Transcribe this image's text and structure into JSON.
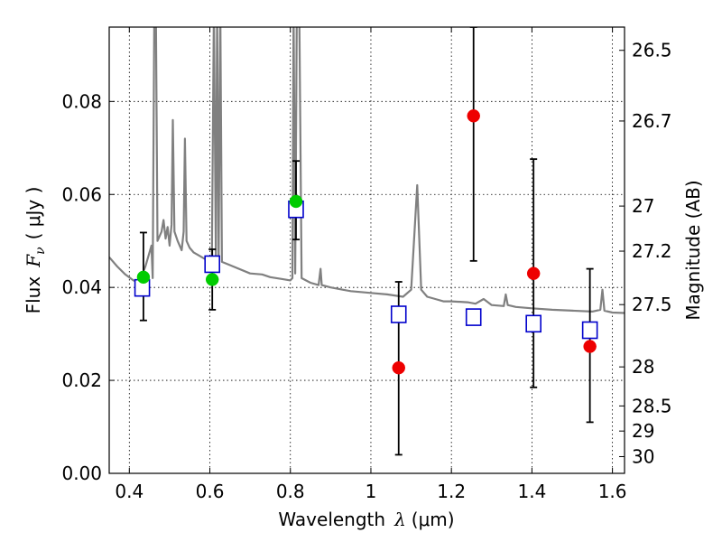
{
  "chart_data": {
    "type": "scatter",
    "title": "",
    "xlabel": {
      "text": "Wavelength",
      "symbol": "λ",
      "unit": "(μm)"
    },
    "ylabel": {
      "text": "Flux",
      "symbol": "F",
      "subscript": "ν",
      "unit": "( μJy )"
    },
    "y2label": "Magnitude (AB)",
    "xlim": [
      0.35,
      1.63
    ],
    "ylim": [
      0.0,
      0.096
    ],
    "grid": true,
    "xticks": [
      {
        "v": 0.4,
        "label": "0.4"
      },
      {
        "v": 0.6,
        "label": "0.6"
      },
      {
        "v": 0.8,
        "label": "0.8"
      },
      {
        "v": 1.0,
        "label": "1"
      },
      {
        "v": 1.2,
        "label": "1.2"
      },
      {
        "v": 1.4,
        "label": "1.4"
      },
      {
        "v": 1.6,
        "label": "1.6"
      }
    ],
    "yticks": [
      {
        "v": 0.0,
        "label": "0.00"
      },
      {
        "v": 0.02,
        "label": "0.02"
      },
      {
        "v": 0.04,
        "label": "0.04"
      },
      {
        "v": 0.06,
        "label": "0.06"
      },
      {
        "v": 0.08,
        "label": "0.08"
      }
    ],
    "magnitude_ticks": [
      {
        "label": "26.5",
        "flux": 0.091
      },
      {
        "label": "26.7",
        "flux": 0.0758
      },
      {
        "label": "27",
        "flux": 0.0575
      },
      {
        "label": "27.2",
        "flux": 0.0478
      },
      {
        "label": "27.5",
        "flux": 0.0363
      },
      {
        "label": "28",
        "flux": 0.0229
      },
      {
        "label": "28.5",
        "flux": 0.0145
      },
      {
        "label": "29",
        "flux": 0.0091
      },
      {
        "label": "30",
        "flux": 0.0036
      }
    ],
    "series": [
      {
        "type": "line",
        "color": "#808080",
        "points": [
          [
            0.35,
            0.0465
          ],
          [
            0.37,
            0.0445
          ],
          [
            0.39,
            0.0428
          ],
          [
            0.41,
            0.0415
          ],
          [
            0.425,
            0.0412
          ],
          [
            0.44,
            0.0445
          ],
          [
            0.45,
            0.0475
          ],
          [
            0.455,
            0.049
          ],
          [
            0.458,
            0.042
          ],
          [
            0.462,
            0.1
          ],
          [
            0.466,
            0.1
          ],
          [
            0.47,
            0.05
          ],
          [
            0.48,
            0.052
          ],
          [
            0.485,
            0.0545
          ],
          [
            0.49,
            0.0505
          ],
          [
            0.495,
            0.053
          ],
          [
            0.5,
            0.049
          ],
          [
            0.505,
            0.0535
          ],
          [
            0.508,
            0.076
          ],
          [
            0.512,
            0.052
          ],
          [
            0.52,
            0.05
          ],
          [
            0.53,
            0.048
          ],
          [
            0.535,
            0.052
          ],
          [
            0.538,
            0.072
          ],
          [
            0.542,
            0.05
          ],
          [
            0.55,
            0.0485
          ],
          [
            0.56,
            0.0475
          ],
          [
            0.57,
            0.047
          ],
          [
            0.58,
            0.0465
          ],
          [
            0.59,
            0.046
          ],
          [
            0.6,
            0.0458
          ],
          [
            0.605,
            0.047
          ],
          [
            0.61,
            0.1
          ],
          [
            0.615,
            0.046
          ],
          [
            0.618,
            0.1
          ],
          [
            0.622,
            0.046
          ],
          [
            0.626,
            0.1
          ],
          [
            0.63,
            0.0455
          ],
          [
            0.65,
            0.0448
          ],
          [
            0.7,
            0.043
          ],
          [
            0.73,
            0.0428
          ],
          [
            0.75,
            0.0422
          ],
          [
            0.78,
            0.0418
          ],
          [
            0.8,
            0.0415
          ],
          [
            0.805,
            0.042
          ],
          [
            0.808,
            0.1
          ],
          [
            0.812,
            0.043
          ],
          [
            0.816,
            0.1
          ],
          [
            0.822,
            0.1
          ],
          [
            0.828,
            0.042
          ],
          [
            0.85,
            0.041
          ],
          [
            0.87,
            0.0405
          ],
          [
            0.875,
            0.044
          ],
          [
            0.878,
            0.0405
          ],
          [
            0.9,
            0.04
          ],
          [
            0.93,
            0.0395
          ],
          [
            0.95,
            0.0392
          ],
          [
            1.0,
            0.0388
          ],
          [
            1.04,
            0.0385
          ],
          [
            1.08,
            0.038
          ],
          [
            1.1,
            0.0395
          ],
          [
            1.115,
            0.062
          ],
          [
            1.125,
            0.0395
          ],
          [
            1.14,
            0.038
          ],
          [
            1.16,
            0.0375
          ],
          [
            1.18,
            0.037
          ],
          [
            1.2,
            0.037
          ],
          [
            1.24,
            0.0368
          ],
          [
            1.26,
            0.0365
          ],
          [
            1.28,
            0.0375
          ],
          [
            1.3,
            0.0362
          ],
          [
            1.33,
            0.036
          ],
          [
            1.335,
            0.0385
          ],
          [
            1.34,
            0.0362
          ],
          [
            1.36,
            0.0358
          ],
          [
            1.4,
            0.0355
          ],
          [
            1.45,
            0.0352
          ],
          [
            1.5,
            0.035
          ],
          [
            1.55,
            0.0348
          ],
          [
            1.57,
            0.0352
          ],
          [
            1.575,
            0.0395
          ],
          [
            1.58,
            0.035
          ],
          [
            1.6,
            0.0346
          ],
          [
            1.63,
            0.0345
          ]
        ]
      },
      {
        "type": "scatter",
        "marker": "square",
        "color": "#0000cc",
        "points": [
          {
            "x": 0.432,
            "y": 0.0399
          },
          {
            "x": 0.606,
            "y": 0.045
          },
          {
            "x": 0.814,
            "y": 0.0568
          },
          {
            "x": 1.069,
            "y": 0.0342
          },
          {
            "x": 1.255,
            "y": 0.0336
          },
          {
            "x": 1.404,
            "y": 0.0322
          },
          {
            "x": 1.544,
            "y": 0.0308
          }
        ]
      },
      {
        "type": "scatter",
        "marker": "circle",
        "color": "#00cc00",
        "error": [
          {
            "x": 0.435,
            "lo": 0.0329,
            "hi": 0.0518
          },
          {
            "x": 0.606,
            "lo": 0.0352,
            "hi": 0.0482
          },
          {
            "x": 0.814,
            "lo": 0.0503,
            "hi": 0.0672
          }
        ],
        "points": [
          {
            "x": 0.435,
            "y": 0.0422
          },
          {
            "x": 0.606,
            "y": 0.0417
          },
          {
            "x": 0.814,
            "y": 0.0585
          }
        ]
      },
      {
        "type": "scatter",
        "marker": "circle",
        "color": "#ee0000",
        "error": [
          {
            "x": 1.069,
            "lo": 0.004,
            "hi": 0.0412
          },
          {
            "x": 1.255,
            "lo": 0.0457,
            "hi": 0.096
          },
          {
            "x": 1.404,
            "lo": 0.0185,
            "hi": 0.0676
          },
          {
            "x": 1.544,
            "lo": 0.011,
            "hi": 0.044
          }
        ],
        "points": [
          {
            "x": 1.069,
            "y": 0.0227
          },
          {
            "x": 1.255,
            "y": 0.0769
          },
          {
            "x": 1.404,
            "y": 0.043
          },
          {
            "x": 1.544,
            "y": 0.0273
          }
        ]
      }
    ]
  }
}
